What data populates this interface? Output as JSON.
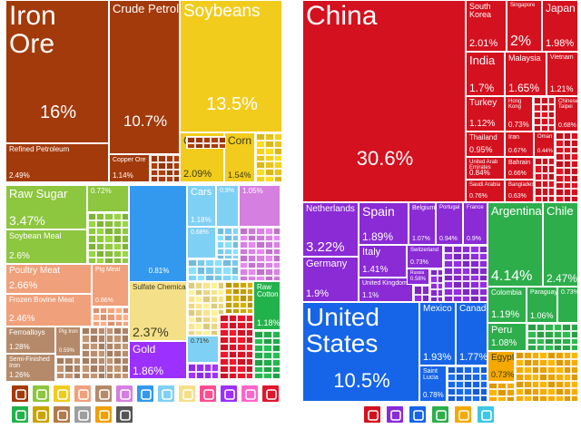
{
  "chart_data": [
    {
      "type": "treemap",
      "name": "products",
      "groups": [
        {
          "group": "mineral",
          "color": "#a33a0b",
          "items": [
            {
              "label": "Iron Ore",
              "value": "16%"
            },
            {
              "label": "Crude Petroleum",
              "value": "10.7%"
            },
            {
              "label": "Refined Petroleum",
              "value": "2.49%"
            },
            {
              "label": "Copper Ore",
              "value": "1.14%"
            }
          ]
        },
        {
          "group": "vegetable",
          "color": "#f2cc1d",
          "items": [
            {
              "label": "Soybeans",
              "value": "13.5%"
            },
            {
              "label": "Coffee",
              "value": "2.09%"
            },
            {
              "label": "Corn",
              "value": "1.54%"
            }
          ]
        },
        {
          "group": "foodstuffs",
          "color": "#8dc63f",
          "items": [
            {
              "label": "Raw Sugar",
              "value": "3.47%"
            },
            {
              "label": "Soybean Meal",
              "value": "2.6%"
            },
            {
              "label": "",
              "value": "0.72%"
            }
          ]
        },
        {
          "group": "animal",
          "color": "#f0a07a",
          "items": [
            {
              "label": "Poultry Meat",
              "value": "2.66%"
            },
            {
              "label": "Frozen Bovine Meat",
              "value": "2.46%"
            },
            {
              "label": "Pig Meat",
              "value": "0.86%"
            }
          ]
        },
        {
          "group": "metals",
          "color": "#b58a6a",
          "items": [
            {
              "label": "Ferroalloys",
              "value": "1.28%"
            },
            {
              "label": "Semi-Finished Iron",
              "value": "1.26%"
            },
            {
              "label": "Pig Iron",
              "value": "0.59%"
            }
          ]
        },
        {
          "group": "machines",
          "color": "#3399ee",
          "items": [
            {
              "label": "",
              "value": "0.81%"
            }
          ]
        },
        {
          "group": "transportation",
          "color": "#7fd0f5",
          "items": [
            {
              "label": "Cars",
              "value": "1.18%"
            },
            {
              "label": "",
              "value": "0.9%"
            },
            {
              "label": "",
              "value": "0.68%"
            },
            {
              "label": "",
              "value": "0.71%"
            }
          ]
        },
        {
          "group": "paper",
          "color": "#f5e08a",
          "items": [
            {
              "label": "Sulfate Chemical Woodpulp",
              "value": "2.37%"
            }
          ]
        },
        {
          "group": "chemicals",
          "color": "#d57fe0",
          "items": [
            {
              "label": "",
              "value": "1.05%"
            }
          ]
        },
        {
          "group": "precious",
          "color": "#9b30ff",
          "items": [
            {
              "label": "Gold",
              "value": "1.86%"
            }
          ]
        },
        {
          "group": "textiles",
          "color": "#22b24c",
          "items": [
            {
              "label": "Raw Cotton",
              "value": "1.18%"
            }
          ]
        }
      ],
      "legend_icons": [
        {
          "name": "hammer-icon",
          "color": "#a33a0b"
        },
        {
          "name": "leaf-icon",
          "color": "#8dc63f"
        },
        {
          "name": "grain-icon",
          "color": "#f2cc1d"
        },
        {
          "name": "meat-icon",
          "color": "#f0a07a"
        },
        {
          "name": "anvil-icon",
          "color": "#b58a6a"
        },
        {
          "name": "pot-icon",
          "color": "#d57fe0"
        },
        {
          "name": "gear-icon",
          "color": "#3399ee"
        },
        {
          "name": "road-icon",
          "color": "#7fd0f5"
        },
        {
          "name": "tools-icon",
          "color": "#f5e08a"
        },
        {
          "name": "shoe-icon",
          "color": "#ff4d8f"
        },
        {
          "name": "diamond-icon",
          "color": "#9b30ff"
        },
        {
          "name": "flask-icon",
          "color": "#ff66cc"
        },
        {
          "name": "plastic-icon",
          "color": "#e0162b"
        },
        {
          "name": "shirt-icon",
          "color": "#22b24c"
        },
        {
          "name": "bottle-icon",
          "color": "#c9a400"
        },
        {
          "name": "bag-icon",
          "color": "#b07a4a"
        },
        {
          "name": "box-icon",
          "color": "#9e9e9e"
        },
        {
          "name": "gauge-icon",
          "color": "#f0a000"
        },
        {
          "name": "chair-icon",
          "color": "#555555"
        }
      ]
    },
    {
      "type": "treemap",
      "name": "destinations",
      "groups": [
        {
          "group": "asia",
          "color": "#d4111f",
          "items": [
            {
              "label": "China",
              "value": "30.6%"
            },
            {
              "label": "South Korea",
              "value": "2.01%"
            },
            {
              "label": "Singapore",
              "value": "2%"
            },
            {
              "label": "Japan",
              "value": "1.98%"
            },
            {
              "label": "India",
              "value": "1.7%"
            },
            {
              "label": "Malaysia",
              "value": "1.65%"
            },
            {
              "label": "Vietnam",
              "value": "1.21%"
            },
            {
              "label": "Turkey",
              "value": "1.12%"
            },
            {
              "label": "Hong Kong",
              "value": "0.73%"
            },
            {
              "label": "Chinese Taipei",
              "value": "0.68%"
            },
            {
              "label": "Thailand",
              "value": "0.95%"
            },
            {
              "label": "Iran",
              "value": "0.67%"
            },
            {
              "label": "Oman",
              "value": "0.44%"
            },
            {
              "label": "United Arab Emirates",
              "value": "0.84%"
            },
            {
              "label": "Bahrain",
              "value": "0.66%"
            },
            {
              "label": "Saudi Arabia",
              "value": "0.76%"
            },
            {
              "label": "Bangladesh",
              "value": "0.63%"
            }
          ]
        },
        {
          "group": "europe",
          "color": "#8a2bd6",
          "items": [
            {
              "label": "Netherlands",
              "value": "3.22%"
            },
            {
              "label": "Spain",
              "value": "1.89%"
            },
            {
              "label": "Belgium",
              "value": "1.07%"
            },
            {
              "label": "Portugal",
              "value": "0.94%"
            },
            {
              "label": "France",
              "value": "0.9%"
            },
            {
              "label": "Germany",
              "value": "1.9%"
            },
            {
              "label": "Italy",
              "value": "1.41%"
            },
            {
              "label": "Switzerland",
              "value": "0.73%"
            },
            {
              "label": "United Kingdom",
              "value": "1.1%"
            },
            {
              "label": "Russia",
              "value": "0.58%"
            }
          ]
        },
        {
          "group": "north-america",
          "color": "#1665e8",
          "items": [
            {
              "label": "United States",
              "value": "10.5%"
            },
            {
              "label": "Mexico",
              "value": "1.93%"
            },
            {
              "label": "Canada",
              "value": "1.77%"
            },
            {
              "label": "Saint Lucia",
              "value": "0.78%"
            }
          ]
        },
        {
          "group": "south-america",
          "color": "#2dae4b",
          "items": [
            {
              "label": "Argentina",
              "value": "4.14%"
            },
            {
              "label": "Chile",
              "value": "2.47%"
            },
            {
              "label": "Colombia",
              "value": "1.19%"
            },
            {
              "label": "Paraguay",
              "value": "1.06%"
            },
            {
              "label": "",
              "value": "0.73%"
            },
            {
              "label": "Peru",
              "value": "1.08%"
            }
          ]
        },
        {
          "group": "africa",
          "color": "#f5a800",
          "items": [
            {
              "label": "Egypt",
              "value": "0.73%"
            }
          ]
        }
      ],
      "legend_icons": [
        {
          "name": "asia-map-icon",
          "color": "#d4111f"
        },
        {
          "name": "europe-map-icon",
          "color": "#8a2bd6"
        },
        {
          "name": "north-america-map-icon",
          "color": "#1665e8"
        },
        {
          "name": "south-america-map-icon",
          "color": "#2dae4b"
        },
        {
          "name": "africa-map-icon",
          "color": "#f5a800"
        },
        {
          "name": "oceania-map-icon",
          "color": "#3cc7e6"
        }
      ]
    }
  ]
}
